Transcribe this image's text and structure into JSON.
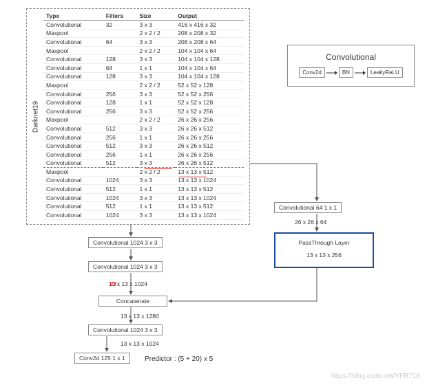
{
  "darknet_label": "Darknet19",
  "headers": {
    "type": "Type",
    "filters": "Filters",
    "size": "Size",
    "output": "Output"
  },
  "rows": [
    {
      "type": "Convolutional",
      "filters": "32",
      "size": "3 x 3",
      "output": "416 x 416 x 32",
      "hl": false
    },
    {
      "type": "Maxpool",
      "filters": "",
      "size": "2 x 2 / 2",
      "output": "208 x 208 x 32",
      "hl": false
    },
    {
      "type": "Convolutional",
      "filters": "64",
      "size": "3 x 3",
      "output": "208 x 208 x 64",
      "hl": false
    },
    {
      "type": "Maxpool",
      "filters": "",
      "size": "2 x 2 / 2",
      "output": "104 x 104 x 64",
      "hl": false
    },
    {
      "type": "Convolutional",
      "filters": "128",
      "size": "3 x 3",
      "output": "104 x 104 x 128",
      "hl": false
    },
    {
      "type": "Convolutional",
      "filters": "64",
      "size": "1 x 1",
      "output": "104 x 104 x 64",
      "hl": false
    },
    {
      "type": "Convolutional",
      "filters": "128",
      "size": "3 x 3",
      "output": "104 x 104 x 128",
      "hl": false
    },
    {
      "type": "Maxpool",
      "filters": "",
      "size": "2 x 2 / 2",
      "output": "52 x 52 x 128",
      "hl": false
    },
    {
      "type": "Convolutional",
      "filters": "256",
      "size": "3 x 3",
      "output": "52 x 52 x 256",
      "hl": false
    },
    {
      "type": "Convolutional",
      "filters": "128",
      "size": "1 x 1",
      "output": "52 x 52 x 128",
      "hl": false
    },
    {
      "type": "Convolutional",
      "filters": "256",
      "size": "3 x 3",
      "output": "52 x 52 x 256",
      "hl": false
    },
    {
      "type": "Maxpool",
      "filters": "",
      "size": "2 x 2 / 2",
      "output": "26 x 26 x 256",
      "hl": false
    },
    {
      "type": "Convolutional",
      "filters": "512",
      "size": "3 x 3",
      "output": "26 x 26 x 512",
      "hl": false
    },
    {
      "type": "Convolutional",
      "filters": "256",
      "size": "1 x 1",
      "output": "26 x 26 x 256",
      "hl": false
    },
    {
      "type": "Convolutional",
      "filters": "512",
      "size": "3 x 3",
      "output": "26 x 26 x 512",
      "hl": false
    },
    {
      "type": "Convolutional",
      "filters": "256",
      "size": "1 x 1",
      "output": "26 x 26 x 256",
      "hl": false
    },
    {
      "type": "Convolutional",
      "filters": "512",
      "size": "3 x 3",
      "output": "26 x 26 x 512",
      "hl": true
    },
    {
      "type": "Maxpool",
      "filters": "",
      "size": "2 x 2 / 2",
      "output": "13 x 13 x 512",
      "hl": false
    },
    {
      "type": "Convolutional",
      "filters": "1024",
      "size": "3 x 3",
      "output": "13 x 13 x 1024",
      "hl": false
    },
    {
      "type": "Convolutional",
      "filters": "512",
      "size": "1 x 1",
      "output": "13 x 13 x 512",
      "hl": false
    },
    {
      "type": "Convolutional",
      "filters": "1024",
      "size": "3 x 3",
      "output": "13 x 13 x 1024",
      "hl": false
    },
    {
      "type": "Convolutional",
      "filters": "512",
      "size": "1 x 1",
      "output": "13 x 13 x 512",
      "hl": false
    },
    {
      "type": "Convolutional",
      "filters": "1024",
      "size": "3 x 3",
      "output": "13 x 13 x 1024",
      "hl": false
    }
  ],
  "conv_legend": {
    "title": "Convolutional",
    "items": [
      "Conv2d",
      "BN",
      "LeakyReLU"
    ]
  },
  "flow": {
    "conv1": "Convolutional   1024   3 x 3",
    "conv2": "Convolutional   1024   3 x 3",
    "shape1": "13 x 13 x 1024",
    "concat": "Concatenate",
    "shape2": "13 x 13 x 1280",
    "conv3": "Convolutional   1024   3 x 3",
    "shape3": "13 x 13 x 1024",
    "conv2d": "Conv2d   125   1 x 1",
    "predictor": "Predictor  :   (5 + 20) x 5"
  },
  "branch": {
    "conv64": "Convolutional   64    1 x 1",
    "shape64": "26 x 26 x 64",
    "passthrough": "PassThrough Layer",
    "shape256": "13 x 13 x 256"
  },
  "watermark": "https://blog.csdn.net/YFR718",
  "colors": {
    "border": "#888888",
    "blue": "#1a4d99",
    "red": "#ee3333",
    "slash_red": "#cc2222"
  }
}
